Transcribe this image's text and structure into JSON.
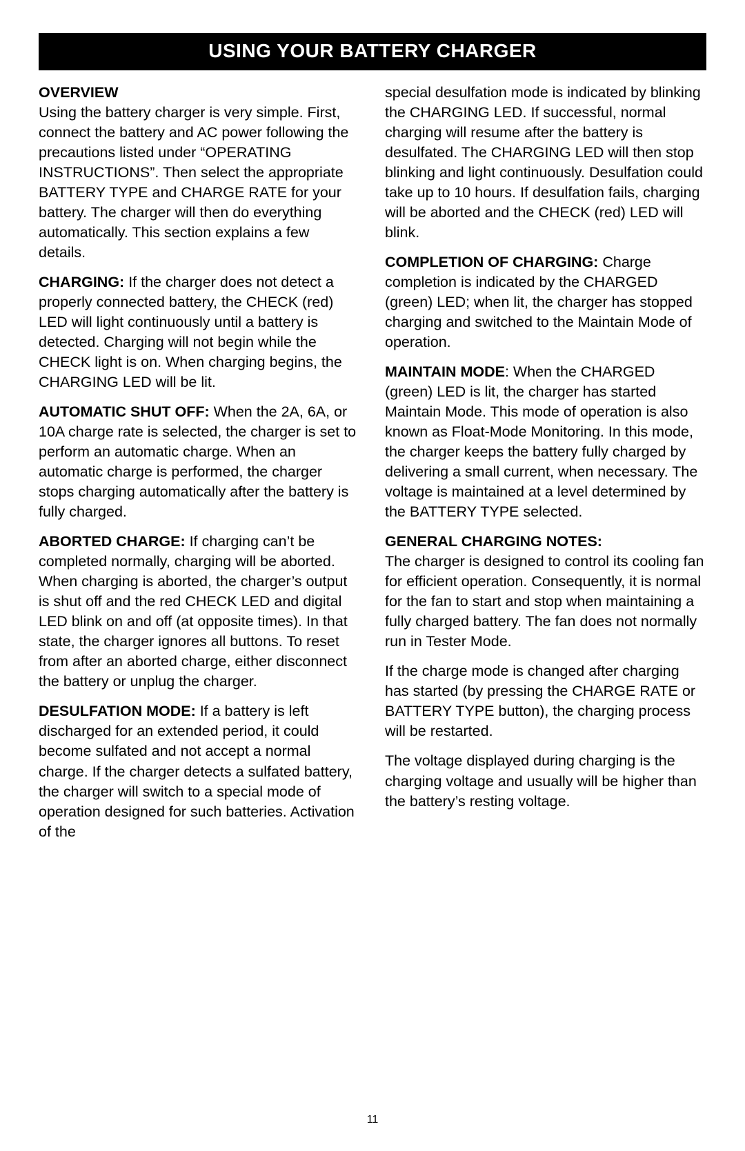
{
  "title": "USING YOUR BATTERY CHARGER",
  "page_number": "11",
  "left": {
    "overview_head": "OVERVIEW",
    "overview_body": "Using the battery charger is very simple. First, connect the battery and AC power following the precautions listed under “OPERATING INSTRUCTIONS”. Then select the appropriate BATTERY TYPE and CHARGE RATE for your battery. The charger will then do everything automatically. This section explains a few details.",
    "charging_head": "CHARGING:",
    "charging_body": " If the charger does not detect a properly connected battery, the CHECK (red) LED will light continuously until a battery is detected. Charging will not begin while the CHECK light is on. When charging begins, the CHARGING LED will be lit.",
    "auto_head": "AUTOMATIC SHUT OFF:",
    "auto_body": " When the 2A, 6A, or 10A charge rate is selected, the charger is set to perform an automatic charge. When an automatic charge is performed, the charger stops charging automatically after the battery is fully charged.",
    "aborted_head": "ABORTED CHARGE:",
    "aborted_body": " If charging can’t be completed normally, charging will be aborted. When charging is aborted, the charger’s output is shut off and the red CHECK LED and digital LED blink on and off (at opposite times). In that state, the charger ignores all buttons. To reset from after an aborted charge, either disconnect the battery or unplug the charger.",
    "desulf_head": "DESULFATION MODE:",
    "desulf_body": " If a battery is left discharged for an extended period, it could become sulfated and not accept a normal charge. If the charger detects a sulfated battery, the charger will switch to a special mode of operation designed for such batteries. Activation of the"
  },
  "right": {
    "desulf_cont": "special desulfation mode is indicated by blinking the CHARGING LED. If successful, normal charging will resume after the battery is desulfated. The CHARGING LED will then stop blinking and light continuously. Desulfation could take up to 10 hours. If desulfation fails, charging will be aborted and the CHECK (red) LED will blink.",
    "completion_head": "COMPLETION OF CHARGING:",
    "completion_body": " Charge completion is indicated by the CHARGED (green) LED; when lit, the charger has stopped charging and switched to the Maintain Mode of operation.",
    "maintain_head": "MAINTAIN MODE",
    "maintain_body": ": When the CHARGED (green) LED is lit, the charger has started Maintain Mode. This mode of operation is also known as Float-Mode Monitoring. In this mode, the charger keeps the battery fully charged by delivering a small current, when necessary. The voltage is main­tained at a level determined by the BATTERY TYPE selected.",
    "notes_head": "GENERAL CHARGING NOTES:",
    "notes_p1": "The charger is designed to control its cooling fan for efficient operation. Consequently, it is normal for the fan to start and stop when maintaining a fully charged battery. The fan does not normally run in Tester Mode.",
    "notes_p2": "If the charge mode is changed after charging has started (by pressing the CHARGE RATE or BATTERY TYPE button), the charging process will be restarted.",
    "notes_p3": "The voltage displayed during charging is the charging voltage and usually will be higher than the battery’s resting voltage."
  }
}
